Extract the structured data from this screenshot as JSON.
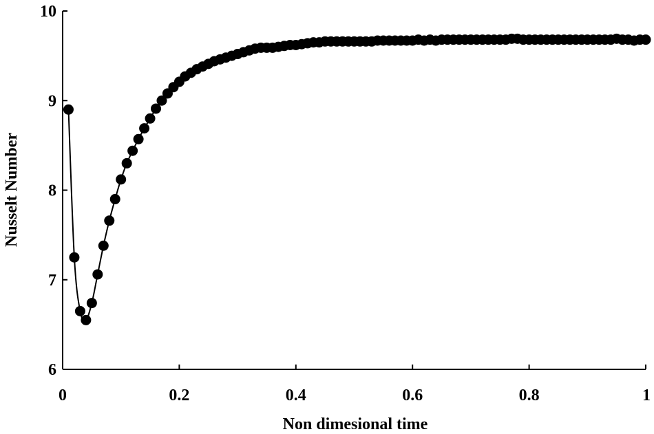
{
  "chart_data": {
    "type": "line",
    "title": "",
    "xlabel": "Non dimesional time",
    "ylabel": "Nusselt Number",
    "xlim": [
      0,
      1
    ],
    "ylim": [
      6,
      10
    ],
    "xticks": [
      0,
      0.2,
      0.4,
      0.6,
      0.8,
      1
    ],
    "xtick_labels": [
      "0",
      "0.2",
      "0.4",
      "0.6",
      "0.8",
      "1"
    ],
    "yticks": [
      6,
      7,
      8,
      9,
      10
    ],
    "ytick_labels": [
      "6",
      "7",
      "8",
      "9",
      "10"
    ],
    "grid": false,
    "legend": "none",
    "colors": {
      "series": "#000000",
      "axis": "#000000",
      "background": "#ffffff"
    },
    "series": [
      {
        "name": "Nusselt Number",
        "marker": "circle",
        "x": [
          0.01,
          0.02,
          0.03,
          0.04,
          0.05,
          0.06,
          0.07,
          0.08,
          0.09,
          0.1,
          0.11,
          0.12,
          0.13,
          0.14,
          0.15,
          0.16,
          0.17,
          0.18,
          0.19,
          0.2,
          0.21,
          0.22,
          0.23,
          0.24,
          0.25,
          0.26,
          0.27,
          0.28,
          0.29,
          0.3,
          0.31,
          0.32,
          0.33,
          0.34,
          0.35,
          0.36,
          0.37,
          0.38,
          0.39,
          0.4,
          0.41,
          0.42,
          0.43,
          0.44,
          0.45,
          0.46,
          0.47,
          0.48,
          0.49,
          0.5,
          0.51,
          0.52,
          0.53,
          0.54,
          0.55,
          0.56,
          0.57,
          0.58,
          0.59,
          0.6,
          0.61,
          0.62,
          0.63,
          0.64,
          0.65,
          0.66,
          0.67,
          0.68,
          0.69,
          0.7,
          0.71,
          0.72,
          0.73,
          0.74,
          0.75,
          0.76,
          0.77,
          0.78,
          0.79,
          0.8,
          0.81,
          0.82,
          0.83,
          0.84,
          0.85,
          0.86,
          0.87,
          0.88,
          0.89,
          0.9,
          0.91,
          0.92,
          0.93,
          0.94,
          0.95,
          0.96,
          0.97,
          0.98,
          0.99,
          1.0
        ],
        "y": [
          8.9,
          7.25,
          6.65,
          6.55,
          6.74,
          7.06,
          7.38,
          7.66,
          7.9,
          8.12,
          8.3,
          8.44,
          8.57,
          8.69,
          8.8,
          8.91,
          9.0,
          9.08,
          9.15,
          9.21,
          9.27,
          9.31,
          9.35,
          9.38,
          9.41,
          9.44,
          9.46,
          9.48,
          9.5,
          9.52,
          9.54,
          9.56,
          9.58,
          9.59,
          9.59,
          9.59,
          9.6,
          9.61,
          9.62,
          9.62,
          9.63,
          9.64,
          9.65,
          9.65,
          9.66,
          9.66,
          9.66,
          9.66,
          9.66,
          9.66,
          9.66,
          9.66,
          9.66,
          9.67,
          9.67,
          9.67,
          9.67,
          9.67,
          9.67,
          9.67,
          9.68,
          9.67,
          9.68,
          9.67,
          9.68,
          9.68,
          9.68,
          9.68,
          9.68,
          9.68,
          9.68,
          9.68,
          9.68,
          9.68,
          9.68,
          9.68,
          9.69,
          9.69,
          9.68,
          9.68,
          9.68,
          9.68,
          9.68,
          9.68,
          9.68,
          9.68,
          9.68,
          9.68,
          9.68,
          9.68,
          9.68,
          9.68,
          9.68,
          9.68,
          9.69,
          9.68,
          9.68,
          9.67,
          9.68,
          9.68
        ]
      }
    ]
  }
}
